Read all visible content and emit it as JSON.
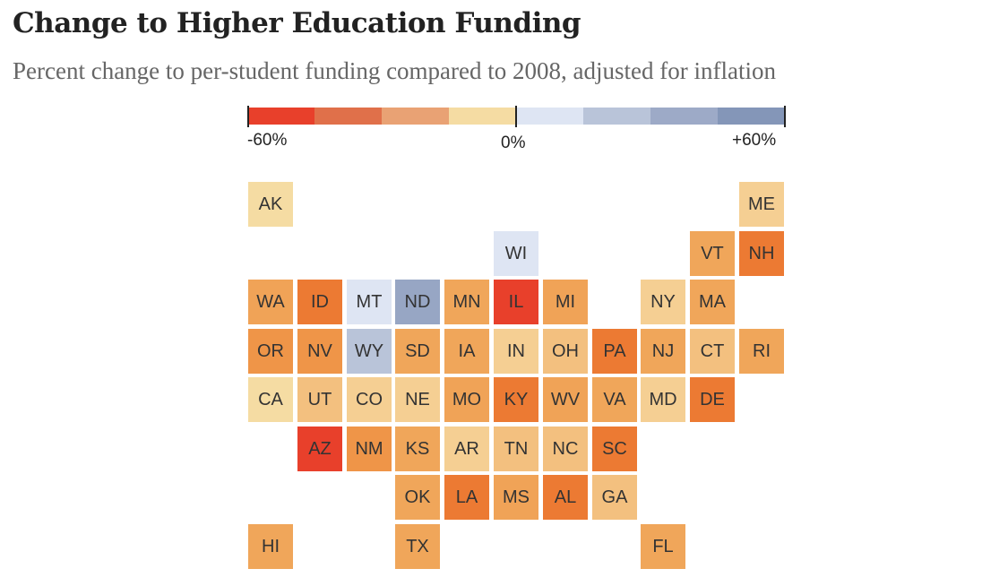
{
  "header": {
    "title": "Change to Higher Education Funding",
    "subtitle": "Percent change to per-student funding compared to 2008, adjusted for inflation"
  },
  "legend": {
    "min_label": "-60%",
    "mid_label": "0%",
    "max_label": "+60%",
    "colors": [
      "#e8402b",
      "#e0704a",
      "#e9a274",
      "#f5dca3",
      "#dee5f3",
      "#b9c4d9",
      "#9daac7",
      "#8496b8"
    ]
  },
  "chart_data": {
    "type": "heatmap",
    "title": "Change to Higher Education Funding",
    "subtitle": "Percent change to per-student funding compared to 2008, adjusted for inflation",
    "layout": "state tile grid map",
    "scale": {
      "min": -60,
      "max": 60,
      "unit": "%",
      "bins": 8
    },
    "states": [
      {
        "code": "AK",
        "col": 0,
        "row": 0,
        "bin": "-15 to 0",
        "color": "#f5dca3"
      },
      {
        "code": "ME",
        "col": 10,
        "row": 0,
        "bin": "-15 to 0",
        "color": "#f5cf93"
      },
      {
        "code": "WI",
        "col": 5,
        "row": 1,
        "bin": "0 to 15",
        "color": "#dee5f3"
      },
      {
        "code": "VT",
        "col": 9,
        "row": 1,
        "bin": "-30 to -15",
        "color": "#f0a65a"
      },
      {
        "code": "NH",
        "col": 10,
        "row": 1,
        "bin": "-45 to -30",
        "color": "#ec7a33"
      },
      {
        "code": "WA",
        "col": 0,
        "row": 2,
        "bin": "-30 to -15",
        "color": "#f0a357"
      },
      {
        "code": "ID",
        "col": 1,
        "row": 2,
        "bin": "-45 to -30",
        "color": "#ec7a33"
      },
      {
        "code": "MT",
        "col": 2,
        "row": 2,
        "bin": "0 to 15",
        "color": "#dee5f3"
      },
      {
        "code": "ND",
        "col": 3,
        "row": 2,
        "bin": "30 to 45",
        "color": "#97a6c4"
      },
      {
        "code": "MN",
        "col": 4,
        "row": 2,
        "bin": "-30 to -15",
        "color": "#f0a65a"
      },
      {
        "code": "IL",
        "col": 5,
        "row": 2,
        "bin": "-60 to -45",
        "color": "#e8402b"
      },
      {
        "code": "MI",
        "col": 6,
        "row": 2,
        "bin": "-30 to -15",
        "color": "#f0a357"
      },
      {
        "code": "NY",
        "col": 8,
        "row": 2,
        "bin": "-15 to 0",
        "color": "#f5cf93"
      },
      {
        "code": "MA",
        "col": 9,
        "row": 2,
        "bin": "-30 to -15",
        "color": "#f0a65a"
      },
      {
        "code": "OR",
        "col": 0,
        "row": 3,
        "bin": "-30 to -15",
        "color": "#ef9548"
      },
      {
        "code": "NV",
        "col": 1,
        "row": 3,
        "bin": "-30 to -15",
        "color": "#ef9548"
      },
      {
        "code": "WY",
        "col": 2,
        "row": 3,
        "bin": "15 to 30",
        "color": "#b9c4d9"
      },
      {
        "code": "SD",
        "col": 3,
        "row": 3,
        "bin": "-30 to -15",
        "color": "#f0a65a"
      },
      {
        "code": "IA",
        "col": 4,
        "row": 3,
        "bin": "-30 to -15",
        "color": "#f0a65a"
      },
      {
        "code": "IN",
        "col": 5,
        "row": 3,
        "bin": "-15 to 0",
        "color": "#f5cf93"
      },
      {
        "code": "OH",
        "col": 6,
        "row": 3,
        "bin": "-15 to 0",
        "color": "#f3c07f"
      },
      {
        "code": "PA",
        "col": 7,
        "row": 3,
        "bin": "-45 to -30",
        "color": "#ec7a33"
      },
      {
        "code": "NJ",
        "col": 8,
        "row": 3,
        "bin": "-30 to -15",
        "color": "#f0a65a"
      },
      {
        "code": "CT",
        "col": 9,
        "row": 3,
        "bin": "-15 to 0",
        "color": "#f3c07f"
      },
      {
        "code": "RI",
        "col": 10,
        "row": 3,
        "bin": "-30 to -15",
        "color": "#f0a65a"
      },
      {
        "code": "CA",
        "col": 0,
        "row": 4,
        "bin": "-15 to 0",
        "color": "#f5dca3"
      },
      {
        "code": "UT",
        "col": 1,
        "row": 4,
        "bin": "-15 to 0",
        "color": "#f3c07f"
      },
      {
        "code": "CO",
        "col": 2,
        "row": 4,
        "bin": "-15 to 0",
        "color": "#f5cf93"
      },
      {
        "code": "NE",
        "col": 3,
        "row": 4,
        "bin": "-15 to 0",
        "color": "#f5cf93"
      },
      {
        "code": "MO",
        "col": 4,
        "row": 4,
        "bin": "-30 to -15",
        "color": "#f0a357"
      },
      {
        "code": "KY",
        "col": 5,
        "row": 4,
        "bin": "-45 to -30",
        "color": "#ec7a33"
      },
      {
        "code": "WV",
        "col": 6,
        "row": 4,
        "bin": "-30 to -15",
        "color": "#f0a357"
      },
      {
        "code": "VA",
        "col": 7,
        "row": 4,
        "bin": "-30 to -15",
        "color": "#f0a65a"
      },
      {
        "code": "MD",
        "col": 8,
        "row": 4,
        "bin": "-15 to 0",
        "color": "#f5cf93"
      },
      {
        "code": "DE",
        "col": 9,
        "row": 4,
        "bin": "-45 to -30",
        "color": "#ec7a33"
      },
      {
        "code": "AZ",
        "col": 1,
        "row": 5,
        "bin": "-60 to -45",
        "color": "#e8402b"
      },
      {
        "code": "NM",
        "col": 2,
        "row": 5,
        "bin": "-30 to -15",
        "color": "#ef9548"
      },
      {
        "code": "KS",
        "col": 3,
        "row": 5,
        "bin": "-30 to -15",
        "color": "#f0a65a"
      },
      {
        "code": "AR",
        "col": 4,
        "row": 5,
        "bin": "-15 to 0",
        "color": "#f5cf93"
      },
      {
        "code": "TN",
        "col": 5,
        "row": 5,
        "bin": "-15 to 0",
        "color": "#f3c07f"
      },
      {
        "code": "NC",
        "col": 6,
        "row": 5,
        "bin": "-15 to 0",
        "color": "#f3c07f"
      },
      {
        "code": "SC",
        "col": 7,
        "row": 5,
        "bin": "-45 to -30",
        "color": "#ec7a33"
      },
      {
        "code": "OK",
        "col": 3,
        "row": 6,
        "bin": "-30 to -15",
        "color": "#f0a65a"
      },
      {
        "code": "LA",
        "col": 4,
        "row": 6,
        "bin": "-45 to -30",
        "color": "#ec7a33"
      },
      {
        "code": "MS",
        "col": 5,
        "row": 6,
        "bin": "-30 to -15",
        "color": "#f0a357"
      },
      {
        "code": "AL",
        "col": 6,
        "row": 6,
        "bin": "-45 to -30",
        "color": "#ec7a33"
      },
      {
        "code": "GA",
        "col": 7,
        "row": 6,
        "bin": "-15 to 0",
        "color": "#f3c07f"
      },
      {
        "code": "HI",
        "col": 0,
        "row": 7,
        "bin": "-30 to -15",
        "color": "#f0a65a"
      },
      {
        "code": "TX",
        "col": 3,
        "row": 7,
        "bin": "-30 to -15",
        "color": "#f0a65a"
      },
      {
        "code": "FL",
        "col": 8,
        "row": 7,
        "bin": "-30 to -15",
        "color": "#f0a65a"
      }
    ]
  }
}
